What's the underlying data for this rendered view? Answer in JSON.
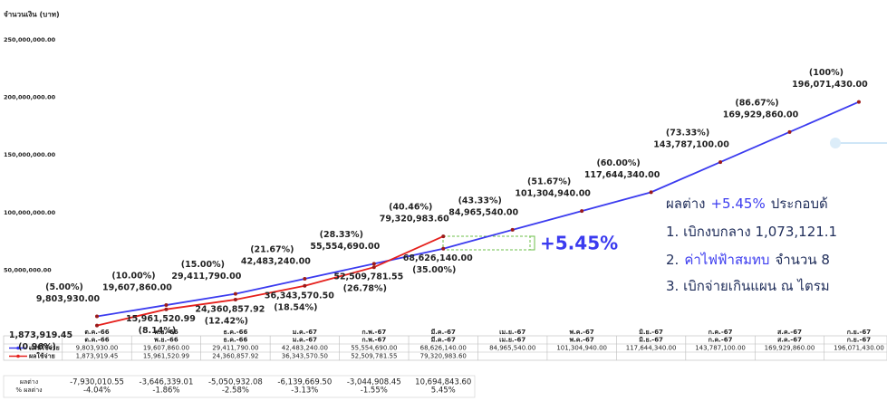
{
  "chart_data": {
    "type": "line",
    "y_axis_label": "จำนวนเงิน (บาท)",
    "categories": [
      "ต.ค.-66",
      "พ.ย.-66",
      "ธ.ค.-66",
      "ม.ค.-67",
      "ก.พ.-67",
      "มี.ค.-67",
      "เม.ย.-67",
      "พ.ค.-67",
      "มิ.ย.-67",
      "ก.ค.-67",
      "ส.ค.-67",
      "ก.ย.-67"
    ],
    "series": [
      {
        "name": "แผนใช้จ่าย",
        "color": "#3b3bef",
        "values": [
          9803930,
          19607860,
          29411790,
          42483240,
          55554690,
          68626140,
          84965540,
          101304940,
          117644340,
          143787100,
          169929860,
          196071430
        ],
        "value_labels": [
          "9,803,930.00",
          "19,607,860.00",
          "29,411,790.00",
          "42,483,240.00",
          "55,554,690.00",
          "68,626,140.00",
          "84,965,540.00",
          "101,304,940.00",
          "117,644,340.00",
          "143,787,100.00",
          "169,929,860.00",
          "196,071,430.00"
        ],
        "percent_labels": [
          "(5.00%)",
          "(10.00%)",
          "(15.00%)",
          "(21.67%)",
          "(28.33%)",
          "(35.00%)",
          "(43.33%)",
          "(51.67%)",
          "(60.00%)",
          "(73.33%)",
          "(86.67%)",
          "(100%)"
        ]
      },
      {
        "name": "ผลใช้จ่าย",
        "color": "#e5201c",
        "values": [
          1873919.45,
          15961520.99,
          24360857.92,
          36343570.5,
          52509781.55,
          79320983.6,
          null,
          null,
          null,
          null,
          null,
          null
        ],
        "value_labels": [
          "1,873,919.45",
          "15,961,520.99",
          "24,360,857.92",
          "36,343,570.50",
          "52,509,781.55",
          "79,320,983.60",
          null,
          null,
          null,
          null,
          null,
          null
        ],
        "percent_labels": [
          "(0.96%)",
          "(8.14%)",
          "(12.42%)",
          "(18.54%)",
          "(26.78%)",
          "(40.46%)",
          null,
          null,
          null,
          null,
          null,
          null
        ]
      }
    ],
    "ylim": [
      0,
      250000000
    ],
    "yticks": [
      {
        "value": 50000000,
        "label": "50,000,000.00"
      },
      {
        "value": 100000000,
        "label": "100,000,000.00"
      },
      {
        "value": 150000000,
        "label": "150,000,000.00"
      },
      {
        "value": 200000000,
        "label": "200,000,000.00"
      },
      {
        "value": 250000000,
        "label": "250,000,000.00"
      }
    ],
    "annotation": "+5.45%",
    "difference": {
      "label": "ผลต่าง",
      "values": [
        "-7,930,010.55",
        "-3,646,339.01",
        "-5,050,932.08",
        "-6,139,669.50",
        "-3,044,908.45",
        "10,694,843.60"
      ],
      "percent_label": "% ผลต่าง",
      "percents": [
        "-4.04%",
        "-1.86%",
        "-2.58%",
        "-3.13%",
        "-1.55%",
        "5.45%"
      ]
    },
    "note": {
      "heading": [
        "ผลต่าง",
        "+5.45%",
        "ประกอบด้"
      ],
      "items": [
        [
          "1. เบิกงบกลาง 1,073,121.1"
        ],
        [
          "2.",
          "ค่าไฟฟ้าสมทบ",
          "จำนวน 8"
        ],
        [
          "3. เบิกจ่ายเกินแผน ณ ไตรม"
        ]
      ]
    }
  }
}
